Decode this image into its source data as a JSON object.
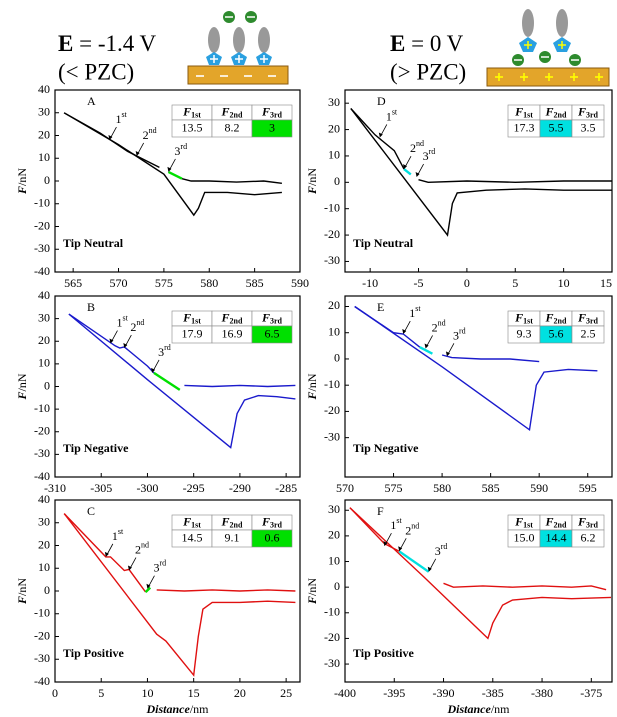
{
  "header": {
    "left": {
      "symbol": "E",
      "title": " = -1.4 V",
      "subtitle": "(< PZC)"
    },
    "right": {
      "symbol": "E",
      "title": " = 0 V",
      "subtitle": "(> PZC)"
    }
  },
  "chart_data": [
    {
      "type": "line",
      "panel_label": "A",
      "tip_label": "Tip Neutral",
      "tip_color": "#000000",
      "y_label": {
        "symbol": "F",
        "unit": "/nN"
      },
      "xlim": [
        563,
        590
      ],
      "xticks": [
        565,
        570,
        575,
        580,
        585,
        590
      ],
      "ylim": [
        -40,
        40
      ],
      "yticks": [
        -40,
        -30,
        -20,
        -10,
        0,
        10,
        20,
        30,
        40
      ],
      "series": [
        {
          "color": "#000000",
          "x": [
            564,
            568,
            571,
            574.5,
            575.5,
            577,
            578,
            580,
            583,
            586,
            588
          ],
          "values": [
            30,
            21,
            13,
            6,
            null,
            1,
            0,
            0,
            -0.5,
            0,
            -1
          ]
        },
        {
          "color": "#000000",
          "x": [
            564,
            570,
            575,
            578.3,
            578.8,
            579.5,
            582,
            585,
            588
          ],
          "values": [
            30,
            16,
            3,
            -15,
            -12,
            -5,
            -5,
            -6,
            -5
          ]
        },
        {
          "color": "#00e000",
          "x": [
            575.5,
            577
          ],
          "values": [
            4,
            1
          ]
        }
      ],
      "annotations": [
        {
          "num": "1",
          "sup": "st"
        },
        {
          "num": "2",
          "sup": "nd"
        },
        {
          "num": "3",
          "sup": "rd"
        }
      ],
      "table": {
        "headers": [
          {
            "symbol": "F",
            "sub": "1st"
          },
          {
            "symbol": "F",
            "sub": "2nd"
          },
          {
            "symbol": "F",
            "sub": "3rd"
          }
        ],
        "values": [
          "13.5",
          "8.2",
          "3"
        ],
        "highlight": 2,
        "highlight_color": "#00e000"
      }
    },
    {
      "type": "line",
      "panel_label": "B",
      "tip_label": "Tip Negative",
      "tip_color": "#1a1acc",
      "y_label": {
        "symbol": "F",
        "unit": "/nN"
      },
      "xlim": [
        -310,
        -283.5
      ],
      "xticks": [
        -310,
        -305,
        -300,
        -295,
        -290,
        -285
      ],
      "ylim": [
        -40,
        40
      ],
      "yticks": [
        -40,
        -30,
        -20,
        -10,
        0,
        10,
        20,
        30,
        40
      ],
      "series": [
        {
          "color": "#1a1acc",
          "x": [
            -308.5,
            -306,
            -303.5,
            -303,
            -302.5,
            -300,
            -299.3,
            -296.5,
            -296,
            -293,
            -290,
            -287,
            -284
          ],
          "values": [
            32,
            25,
            18,
            17,
            17.5,
            9,
            6,
            null,
            0.5,
            0,
            0.5,
            0,
            0.5
          ]
        },
        {
          "color": "#1a1acc",
          "x": [
            -308.5,
            -300,
            -291,
            -290.3,
            -289.5,
            -288,
            -286,
            -284
          ],
          "values": [
            32,
            3,
            -27,
            -12,
            -6,
            -4,
            -4.5,
            -5.5
          ]
        },
        {
          "color": "#00e000",
          "x": [
            -299.3,
            -296.5
          ],
          "values": [
            6,
            -1.5
          ]
        }
      ],
      "annotations": [
        {
          "num": "1",
          "sup": "st"
        },
        {
          "num": "2",
          "sup": "nd"
        },
        {
          "num": "3",
          "sup": "rd"
        }
      ],
      "table": {
        "headers": [
          {
            "symbol": "F",
            "sub": "1st"
          },
          {
            "symbol": "F",
            "sub": "2nd"
          },
          {
            "symbol": "F",
            "sub": "3rd"
          }
        ],
        "values": [
          "17.9",
          "16.9",
          "6.5"
        ],
        "highlight": 2,
        "highlight_color": "#00e000"
      }
    },
    {
      "type": "line",
      "panel_label": "C",
      "tip_label": "Tip Positive",
      "tip_color": "#e01010",
      "y_label": {
        "symbol": "F",
        "unit": "/nN"
      },
      "x_label": {
        "symbol": "Distance",
        "unit": "/nm"
      },
      "xlim": [
        0,
        26.5
      ],
      "xticks": [
        0,
        5,
        10,
        15,
        20,
        25
      ],
      "ylim": [
        -40,
        40
      ],
      "yticks": [
        -40,
        -30,
        -20,
        -10,
        0,
        10,
        20,
        30,
        40
      ],
      "series": [
        {
          "color": "#e01010",
          "x": [
            1,
            5.5,
            6,
            7.5,
            8,
            9.8,
            10.3,
            11,
            14,
            17,
            20,
            23,
            26
          ],
          "values": [
            34,
            15,
            15,
            9,
            9.5,
            -0.5,
            null,
            0.5,
            0,
            0.5,
            0,
            0.5,
            0
          ]
        },
        {
          "color": "#e01010",
          "x": [
            1,
            11,
            12,
            15,
            15.5,
            16,
            17,
            20,
            23,
            26
          ],
          "values": [
            34,
            -19,
            -22,
            -37,
            -20,
            -8,
            -5,
            -5,
            -4.5,
            -5
          ]
        },
        {
          "color": "#00e000",
          "x": [
            9.8,
            10.3
          ],
          "values": [
            -0.5,
            1.5
          ]
        }
      ],
      "annotations": [
        {
          "num": "1",
          "sup": "st"
        },
        {
          "num": "2",
          "sup": "nd"
        },
        {
          "num": "3",
          "sup": "rd"
        }
      ],
      "table": {
        "headers": [
          {
            "symbol": "F",
            "sub": "1st"
          },
          {
            "symbol": "F",
            "sub": "2nd"
          },
          {
            "symbol": "F",
            "sub": "3rd"
          }
        ],
        "values": [
          "14.5",
          "9.1",
          "0.6"
        ],
        "highlight": 2,
        "highlight_color": "#00e000"
      }
    },
    {
      "type": "line",
      "panel_label": "D",
      "tip_label": "Tip Neutral",
      "tip_color": "#000000",
      "y_label": {
        "symbol": "F",
        "unit": "/nN"
      },
      "xlim": [
        -12.6,
        15
      ],
      "xticks": [
        -10,
        -5,
        0,
        5,
        10,
        15
      ],
      "ylim": [
        -34,
        35
      ],
      "yticks": [
        -30,
        -20,
        -10,
        0,
        10,
        20,
        30
      ],
      "series": [
        {
          "color": "#000000",
          "x": [
            -12,
            -9.5,
            -7.5,
            -6.5,
            -5.8,
            -5,
            -4,
            0,
            5,
            10,
            15
          ],
          "values": [
            28,
            18,
            12,
            5,
            null,
            1,
            0,
            0.5,
            0,
            0.5,
            0.5
          ]
        },
        {
          "color": "#000000",
          "x": [
            -12,
            -7,
            -2,
            -1.5,
            -1,
            2,
            6,
            10,
            15
          ],
          "values": [
            28,
            4,
            -20,
            -8,
            -4,
            -3,
            -2.5,
            -3,
            -3
          ]
        },
        {
          "color": "#00e0e0",
          "x": [
            -6.5,
            -5.8
          ],
          "values": [
            5,
            3
          ]
        }
      ],
      "annotations": [
        {
          "num": "1",
          "sup": "st"
        },
        {
          "num": "2",
          "sup": "nd"
        },
        {
          "num": "3",
          "sup": "rd"
        }
      ],
      "table": {
        "headers": [
          {
            "symbol": "F",
            "sub": "1st"
          },
          {
            "symbol": "F",
            "sub": "2nd"
          },
          {
            "symbol": "F",
            "sub": "3rd"
          }
        ],
        "values": [
          "17.3",
          "5.5",
          "3.5"
        ],
        "highlight": 1,
        "highlight_color": "#00e0e0"
      }
    },
    {
      "type": "line",
      "panel_label": "E",
      "tip_label": "Tip Negative",
      "tip_color": "#1a1acc",
      "y_label": {
        "symbol": "F",
        "unit": "/nN"
      },
      "xlim": [
        570,
        597.5
      ],
      "xticks": [
        570,
        575,
        580,
        585,
        590,
        595
      ],
      "ylim": [
        -45,
        24
      ],
      "yticks": [
        -30,
        -20,
        -10,
        0,
        10,
        20
      ],
      "series": [
        {
          "color": "#1a1acc",
          "x": [
            571,
            575,
            576,
            577.7,
            579,
            580,
            581,
            584,
            587,
            590
          ],
          "values": [
            20,
            10,
            9.5,
            4.5,
            null,
            1.5,
            0.5,
            0,
            0,
            -1
          ]
        },
        {
          "color": "#1a1acc",
          "x": [
            571,
            580,
            589,
            589.7,
            590.5,
            593,
            596
          ],
          "values": [
            20,
            -3,
            -27,
            -10,
            -5,
            -4,
            -4.5
          ]
        },
        {
          "color": "#00e0e0",
          "x": [
            577.7,
            579
          ],
          "values": [
            4.5,
            2
          ]
        }
      ],
      "annotations": [
        {
          "num": "1",
          "sup": "st"
        },
        {
          "num": "2",
          "sup": "nd"
        },
        {
          "num": "3",
          "sup": "rd"
        }
      ],
      "table": {
        "headers": [
          {
            "symbol": "F",
            "sub": "1st"
          },
          {
            "symbol": "F",
            "sub": "2nd"
          },
          {
            "symbol": "F",
            "sub": "3rd"
          }
        ],
        "values": [
          "9.3",
          "5.6",
          "2.5"
        ],
        "highlight": 1,
        "highlight_color": "#00e0e0"
      }
    },
    {
      "type": "line",
      "panel_label": "F",
      "tip_label": "Tip Positive",
      "tip_color": "#e01010",
      "y_label": {
        "symbol": "F",
        "unit": "/nN"
      },
      "x_label": {
        "symbol": "Distance",
        "unit": "/nm"
      },
      "xlim": [
        -400,
        -372.9
      ],
      "xticks": [
        -400,
        -395,
        -390,
        -385,
        -380,
        -375
      ],
      "ylim": [
        -37,
        34
      ],
      "yticks": [
        -30,
        -20,
        -10,
        0,
        10,
        20,
        30
      ],
      "series": [
        {
          "color": "#e01010",
          "x": [
            -399.5,
            -396,
            -395,
            -394.5,
            -391.5,
            -390,
            -389,
            -386,
            -383,
            -380,
            -377,
            -375,
            -373.5
          ],
          "values": [
            31,
            17,
            15,
            14,
            null,
            1.5,
            0,
            0.5,
            0,
            0.5,
            0,
            0.5,
            -1
          ]
        },
        {
          "color": "#e01010",
          "x": [
            -399.5,
            -392,
            -385.5,
            -385,
            -384,
            -383,
            -380,
            -377,
            -373
          ],
          "values": [
            31,
            4,
            -20,
            -14,
            -7,
            -5,
            -4,
            -4.5,
            -4
          ]
        },
        {
          "color": "#00e0e0",
          "x": [
            -394.5,
            -391.5
          ],
          "values": [
            14,
            6
          ]
        }
      ],
      "annotations": [
        {
          "num": "1",
          "sup": "st"
        },
        {
          "num": "2",
          "sup": "nd"
        },
        {
          "num": "3",
          "sup": "rd"
        }
      ],
      "table": {
        "headers": [
          {
            "symbol": "F",
            "sub": "1st"
          },
          {
            "symbol": "F",
            "sub": "2nd"
          },
          {
            "symbol": "F",
            "sub": "3rd"
          }
        ],
        "values": [
          "15.0",
          "14.4",
          "6.2"
        ],
        "highlight": 1,
        "highlight_color": "#00e0e0"
      }
    }
  ]
}
